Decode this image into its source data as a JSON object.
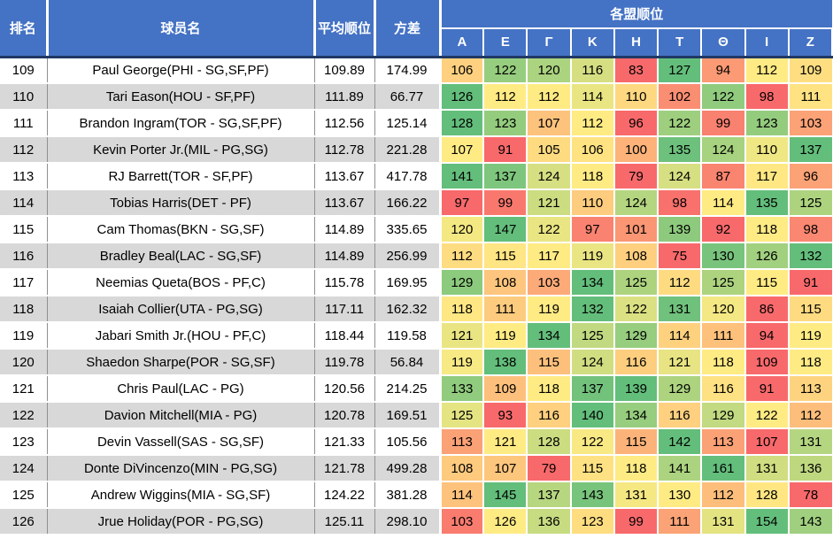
{
  "table": {
    "columns": {
      "rank": "排名",
      "player": "球员名",
      "avg": "平均顺位",
      "variance": "方差",
      "leagues_group": "各盟顺位",
      "leagues": [
        "Α",
        "Ε",
        "Γ",
        "Κ",
        "Η",
        "Τ",
        "Θ",
        "Ι",
        "Ζ"
      ]
    },
    "rows": [
      {
        "rank": 109,
        "player": "Paul George(PHI - SG,SF,PF)",
        "avg": "109.89",
        "variance": "174.99",
        "league_ranks": [
          106,
          122,
          120,
          116,
          83,
          127,
          94,
          112,
          109
        ]
      },
      {
        "rank": 110,
        "player": "Tari Eason(HOU - SF,PF)",
        "avg": "111.89",
        "variance": "66.77",
        "league_ranks": [
          126,
          112,
          112,
          114,
          110,
          102,
          122,
          98,
          111
        ]
      },
      {
        "rank": 111,
        "player": "Brandon Ingram(TOR - SG,SF,PF)",
        "avg": "112.56",
        "variance": "125.14",
        "league_ranks": [
          128,
          123,
          107,
          112,
          96,
          122,
          99,
          123,
          103
        ]
      },
      {
        "rank": 112,
        "player": "Kevin Porter Jr.(MIL - PG,SG)",
        "avg": "112.78",
        "variance": "221.28",
        "league_ranks": [
          107,
          91,
          105,
          106,
          100,
          135,
          124,
          110,
          137
        ]
      },
      {
        "rank": 113,
        "player": "RJ Barrett(TOR - SF,PF)",
        "avg": "113.67",
        "variance": "417.78",
        "league_ranks": [
          141,
          137,
          124,
          118,
          79,
          124,
          87,
          117,
          96
        ]
      },
      {
        "rank": 114,
        "player": "Tobias Harris(DET - PF)",
        "avg": "113.67",
        "variance": "166.22",
        "league_ranks": [
          97,
          99,
          121,
          110,
          124,
          98,
          114,
          135,
          125
        ]
      },
      {
        "rank": 115,
        "player": "Cam Thomas(BKN - SG,SF)",
        "avg": "114.89",
        "variance": "335.65",
        "league_ranks": [
          120,
          147,
          122,
          97,
          101,
          139,
          92,
          118,
          98
        ]
      },
      {
        "rank": 116,
        "player": "Bradley Beal(LAC - SG,SF)",
        "avg": "114.89",
        "variance": "256.99",
        "league_ranks": [
          112,
          115,
          117,
          119,
          108,
          75,
          130,
          126,
          132
        ]
      },
      {
        "rank": 117,
        "player": "Neemias Queta(BOS - PF,C)",
        "avg": "115.78",
        "variance": "169.95",
        "league_ranks": [
          129,
          108,
          103,
          134,
          125,
          112,
          125,
          115,
          91
        ]
      },
      {
        "rank": 118,
        "player": "Isaiah Collier(UTA - PG,SG)",
        "avg": "117.11",
        "variance": "162.32",
        "league_ranks": [
          118,
          111,
          119,
          132,
          122,
          131,
          120,
          86,
          115
        ]
      },
      {
        "rank": 119,
        "player": "Jabari Smith Jr.(HOU - PF,C)",
        "avg": "118.44",
        "variance": "119.58",
        "league_ranks": [
          121,
          119,
          134,
          125,
          129,
          114,
          111,
          94,
          119
        ]
      },
      {
        "rank": 120,
        "player": "Shaedon Sharpe(POR - SG,SF)",
        "avg": "119.78",
        "variance": "56.84",
        "league_ranks": [
          119,
          138,
          115,
          124,
          116,
          121,
          118,
          109,
          118
        ]
      },
      {
        "rank": 121,
        "player": "Chris Paul(LAC - PG)",
        "avg": "120.56",
        "variance": "214.25",
        "league_ranks": [
          133,
          109,
          118,
          137,
          139,
          129,
          116,
          91,
          113
        ]
      },
      {
        "rank": 122,
        "player": "Davion Mitchell(MIA - PG)",
        "avg": "120.78",
        "variance": "169.51",
        "league_ranks": [
          125,
          93,
          116,
          140,
          134,
          116,
          129,
          122,
          112
        ]
      },
      {
        "rank": 123,
        "player": "Devin Vassell(SAS - SG,SF)",
        "avg": "121.33",
        "variance": "105.56",
        "league_ranks": [
          113,
          121,
          128,
          122,
          115,
          142,
          113,
          107,
          131
        ]
      },
      {
        "rank": 124,
        "player": "Donte DiVincenzo(MIN - PG,SG)",
        "avg": "121.78",
        "variance": "499.28",
        "league_ranks": [
          108,
          107,
          79,
          115,
          118,
          141,
          161,
          131,
          136
        ]
      },
      {
        "rank": 125,
        "player": "Andrew Wiggins(MIA - SG,SF)",
        "avg": "124.22",
        "variance": "381.28",
        "league_ranks": [
          114,
          145,
          137,
          143,
          131,
          130,
          112,
          128,
          78
        ]
      },
      {
        "rank": 126,
        "player": "Jrue Holiday(POR - PG,SG)",
        "avg": "125.11",
        "variance": "298.10",
        "league_ranks": [
          103,
          126,
          136,
          123,
          99,
          111,
          131,
          154,
          143
        ]
      }
    ]
  },
  "heatmap": {
    "scale": "per-row-3-color",
    "min_color": "#F8696B",
    "mid_color": "#FFEB84",
    "max_color": "#63BE7B"
  },
  "colors": {
    "header_bg": "#4472C4",
    "header_text": "#FFFFFF",
    "header_bottom_border": "#1F3864",
    "row_bg": "#FFFFFF",
    "row_alt_bg": "#D8D8D8",
    "grid_line": "#909090",
    "cell_text": "#000000"
  }
}
